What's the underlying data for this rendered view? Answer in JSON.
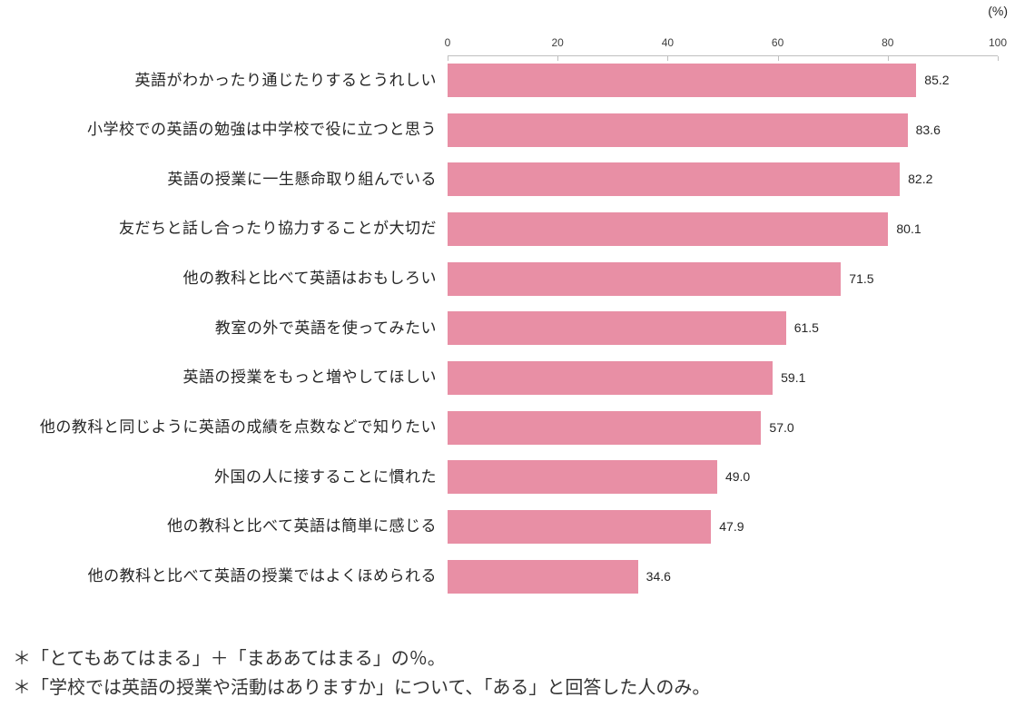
{
  "chart_data": {
    "type": "bar",
    "orientation": "horizontal",
    "title": "",
    "unit_label": "(%)",
    "categories": [
      "英語がわかったり通じたりするとうれしい",
      "小学校での英語の勉強は中学校で役に立つと思う",
      "英語の授業に一生懸命取り組んでいる",
      "友だちと話し合ったり協力することが大切だ",
      "他の教科と比べて英語はおもしろい",
      "教室の外で英語を使ってみたい",
      "英語の授業をもっと増やしてほしい",
      "他の教科と同じように英語の成績を点数などで知りたい",
      "外国の人に接することに慣れた",
      "他の教科と比べて英語は簡単に感じる",
      "他の教科と比べて英語の授業ではよくほめられる"
    ],
    "values": [
      85.2,
      83.6,
      82.2,
      80.1,
      71.5,
      61.5,
      59.1,
      57.0,
      49.0,
      47.9,
      34.6
    ],
    "xlim": [
      0,
      100
    ],
    "x_ticks": [
      0,
      20,
      40,
      60,
      80,
      100
    ],
    "axis_position": "top",
    "grid": false,
    "legend": null,
    "value_decimals": 1,
    "bar_color": "#E88FA5",
    "axis_color": "#BFBFBF",
    "text_color": "#262626"
  },
  "notes": [
    "＊「とてもあてはまる」＋「まああてはまる」の％。",
    "＊「学校では英語の授業や活動はありますか」について、「ある」と回答した人のみ。"
  ]
}
